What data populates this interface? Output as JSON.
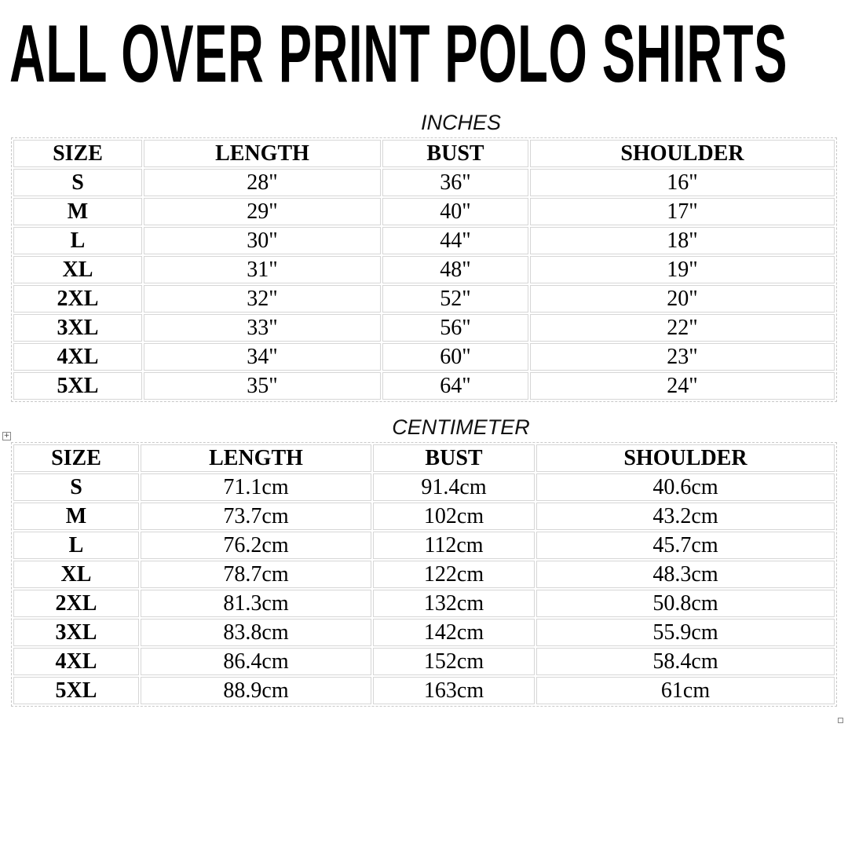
{
  "title": "ALL OVER PRINT POLO SHIRTS",
  "inches": {
    "caption": "INCHES",
    "headers": [
      "SIZE",
      "LENGTH",
      "BUST",
      "SHOULDER"
    ],
    "rows": [
      [
        "S",
        "28\"",
        "36\"",
        "16\""
      ],
      [
        "M",
        "29\"",
        "40\"",
        "17\""
      ],
      [
        "L",
        "30\"",
        "44\"",
        "18\""
      ],
      [
        "XL",
        "31\"",
        "48\"",
        "19\""
      ],
      [
        "2XL",
        "32\"",
        "52\"",
        "20\""
      ],
      [
        "3XL",
        "33\"",
        "56\"",
        "22\""
      ],
      [
        "4XL",
        "34\"",
        "60\"",
        "23\""
      ],
      [
        "5XL",
        "35\"",
        "64\"",
        "24\""
      ]
    ]
  },
  "cm": {
    "caption": "CENTIMETER",
    "headers": [
      "SIZE",
      "LENGTH",
      "BUST",
      "SHOULDER"
    ],
    "rows": [
      [
        "S",
        "71.1cm",
        "91.4cm",
        "40.6cm"
      ],
      [
        "M",
        "73.7cm",
        "102cm",
        "43.2cm"
      ],
      [
        "L",
        "76.2cm",
        "112cm",
        "45.7cm"
      ],
      [
        "XL",
        "78.7cm",
        "122cm",
        "48.3cm"
      ],
      [
        "2XL",
        "81.3cm",
        "132cm",
        "50.8cm"
      ],
      [
        "3XL",
        "83.8cm",
        "142cm",
        "55.9cm"
      ],
      [
        "4XL",
        "86.4cm",
        "152cm",
        "58.4cm"
      ],
      [
        "5XL",
        "88.9cm",
        "163cm",
        "61cm"
      ]
    ]
  },
  "icons": {
    "table_handle": "move-handle-icon"
  }
}
